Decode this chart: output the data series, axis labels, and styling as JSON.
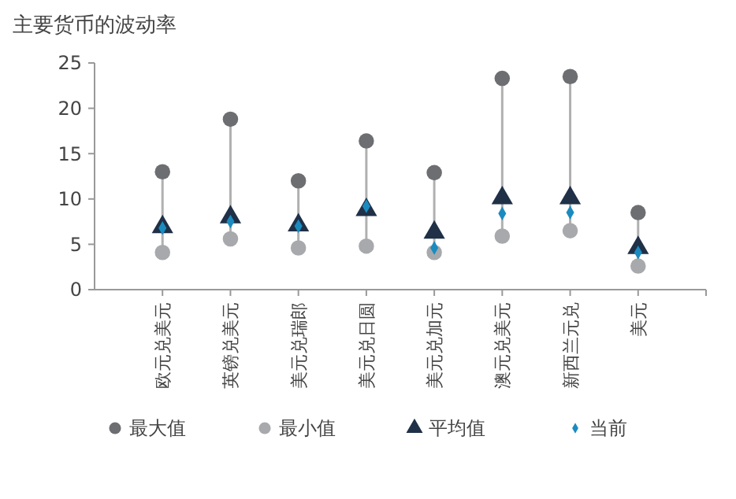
{
  "chart_data": {
    "type": "scatter",
    "title": "主要货币的波动率",
    "categories": [
      "欧元兑美元",
      "英镑兑美元",
      "美元兑瑞郎",
      "美元兑日圆",
      "美元兑加元",
      "澳元兑美元",
      "新西兰元兑",
      "美元"
    ],
    "series": [
      {
        "name": "最大值",
        "color": "#6d6e71",
        "marker": "circle",
        "values": [
          13.0,
          18.8,
          12.0,
          16.4,
          12.9,
          23.3,
          23.5,
          8.5
        ]
      },
      {
        "name": "最小值",
        "color": "#a7a9ac",
        "marker": "circle",
        "values": [
          4.1,
          5.6,
          4.6,
          4.8,
          4.1,
          5.9,
          6.5,
          2.6
        ]
      },
      {
        "name": "平均值",
        "color": "#1f3047",
        "marker": "triangle",
        "values": [
          6.9,
          8.0,
          7.1,
          8.8,
          6.3,
          10.1,
          10.1,
          4.6
        ]
      },
      {
        "name": "当前",
        "color": "#1b8bbf",
        "marker": "diamond",
        "values": [
          6.8,
          7.5,
          7.0,
          9.2,
          4.6,
          8.4,
          8.5,
          4.1
        ]
      }
    ],
    "ylim": [
      0,
      25
    ],
    "yticks": [
      0,
      5,
      10,
      15,
      20,
      25
    ],
    "grid": false,
    "legend": "bottom"
  }
}
